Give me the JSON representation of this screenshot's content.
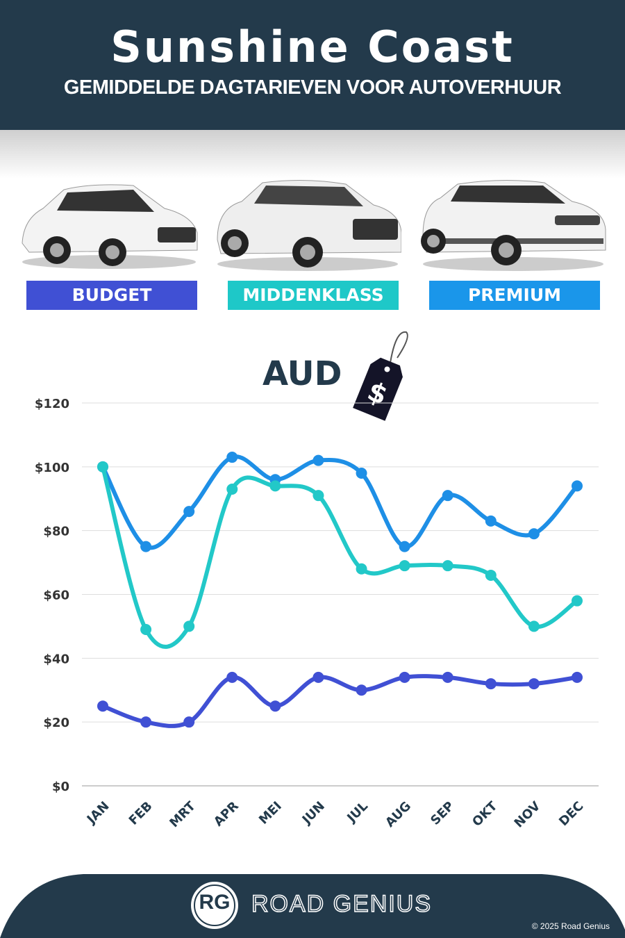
{
  "header": {
    "title": "Sunshine Coast",
    "subtitle": "GEMIDDELDE DAGTARIEVEN VOOR AUTOVERHUUR"
  },
  "categories_legend": [
    {
      "label": "BUDGET",
      "color": "#4050d4"
    },
    {
      "label": "MIDDENKLASS",
      "color": "#1ec8c8"
    },
    {
      "label": "PREMIUM",
      "color": "#1a96ea"
    }
  ],
  "currency_label": "AUD",
  "price_tag_icon": "price-tag-dollar-icon",
  "chart_data": {
    "type": "line",
    "title": "",
    "xlabel": "",
    "ylabel": "",
    "categories": [
      "JAN",
      "FEB",
      "MRT",
      "APR",
      "MEI",
      "JUN",
      "JUL",
      "AUG",
      "SEP",
      "OKT",
      "NOV",
      "DEC"
    ],
    "ylim": [
      0,
      120
    ],
    "yticks": [
      0,
      20,
      40,
      60,
      80,
      100,
      120
    ],
    "ytick_labels": [
      "$0",
      "$20",
      "$40",
      "$60",
      "$80",
      "$100",
      "$120"
    ],
    "grid": true,
    "smooth": true,
    "series": [
      {
        "name": "PREMIUM",
        "color": "#1e8fe6",
        "values": [
          100,
          75,
          86,
          103,
          96,
          102,
          98,
          75,
          91,
          83,
          79,
          94
        ]
      },
      {
        "name": "MIDDENKLASS",
        "color": "#22c8c8",
        "values": [
          100,
          49,
          50,
          93,
          94,
          91,
          68,
          69,
          69,
          66,
          50,
          58
        ]
      },
      {
        "name": "BUDGET",
        "color": "#4050d4",
        "values": [
          25,
          20,
          20,
          34,
          25,
          34,
          30,
          34,
          34,
          32,
          32,
          34
        ]
      }
    ]
  },
  "footer": {
    "brand": "ROAD GENIUS",
    "logo_text": "RG",
    "copyright": "© 2025 Road Genius"
  }
}
